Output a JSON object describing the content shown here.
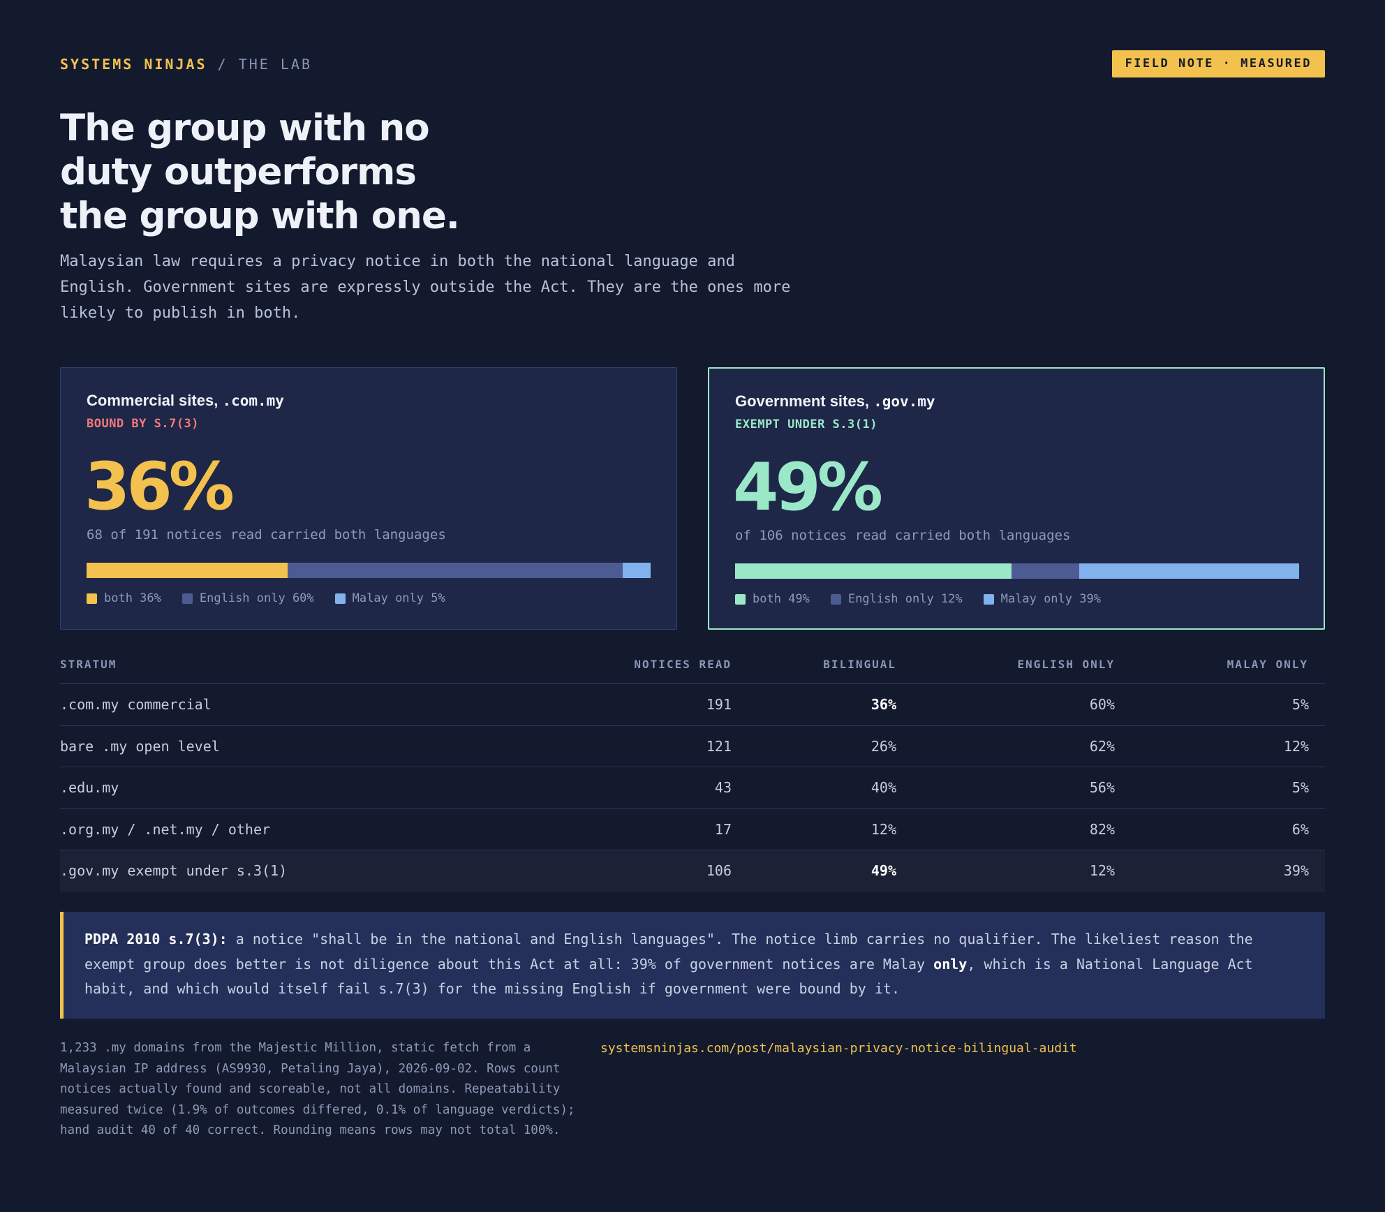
{
  "header": {
    "org": "SYSTEMS NINJAS",
    "separator": "/",
    "section": "THE LAB",
    "badge": "FIELD NOTE · MEASURED"
  },
  "headline": [
    "The group with no",
    "duty outperforms",
    "the group with one."
  ],
  "lede": "Malaysian law requires a privacy notice in both the national language and English. Government sites are expressly outside the Act. They are the ones more likely to publish in both.",
  "colors": {
    "both_commercial": "#f2c14e",
    "both_government": "#9be8c8",
    "english_only": "#4d5b93",
    "malay_only": "#82b2ee",
    "bound_tag": "#f27a7a",
    "exempt_tag": "#9be8c8"
  },
  "cards": [
    {
      "title": "Commercial sites,",
      "domain": ".com.my",
      "tag": "BOUND BY S.7(3)",
      "big": "36%",
      "sub": "68 of 191 notices read carried both languages",
      "legend": [
        "both 36%",
        "English only 60%",
        "Malay only 5%"
      ]
    },
    {
      "title": "Government sites,",
      "domain": ".gov.my",
      "tag": "EXEMPT UNDER S.3(1)",
      "big": "49%",
      "sub": "of 106 notices read carried both languages",
      "legend": [
        "both 49%",
        "English only 12%",
        "Malay only 39%"
      ]
    }
  ],
  "chart_data": [
    {
      "type": "bar",
      "title": "Commercial sites, .com.my",
      "categories": [
        "both",
        "English only",
        "Malay only"
      ],
      "values": [
        36,
        60,
        5
      ],
      "unit": "%"
    },
    {
      "type": "bar",
      "title": "Government sites, .gov.my",
      "categories": [
        "both",
        "English only",
        "Malay only"
      ],
      "values": [
        49,
        12,
        39
      ],
      "unit": "%"
    }
  ],
  "table": {
    "headers": [
      "STRATUM",
      "NOTICES READ",
      "BILINGUAL",
      "ENGLISH ONLY",
      "MALAY ONLY"
    ],
    "rows": [
      {
        "stratum": ".com.my commercial",
        "read": "191",
        "bilingual": "36%",
        "english": "60%",
        "malay": "5%"
      },
      {
        "stratum": "bare .my open level",
        "read": "121",
        "bilingual": "26%",
        "english": "62%",
        "malay": "12%"
      },
      {
        "stratum": ".edu.my",
        "read": "43",
        "bilingual": "40%",
        "english": "56%",
        "malay": "5%"
      },
      {
        "stratum": ".org.my / .net.my / other",
        "read": "17",
        "bilingual": "12%",
        "english": "82%",
        "malay": "6%"
      },
      {
        "stratum": ".gov.my exempt under s.3(1)",
        "read": "106",
        "bilingual": "49%",
        "english": "12%",
        "malay": "39%"
      }
    ]
  },
  "note": {
    "lead": "PDPA 2010 s.7(3):",
    "text1": " a notice \"shall be in the national and English languages\". The notice limb carries no qualifier. The likeliest reason the exempt group does better is not diligence about this Act at all: 39% of government notices are Malay ",
    "emph": "only",
    "text2": ", which is a National Language Act habit, and which would itself fail s.7(3) for the missing English if government were bound by it."
  },
  "footnote": "1,233 .my domains from the Majestic Million, static fetch from a Malaysian IP address (AS9930, Petaling Jaya), 2026-09-02. Rows count notices actually found and scoreable, not all domains. Repeatability measured twice (1.9% of outcomes differed, 0.1% of language verdicts); hand audit 40 of 40 correct. Rounding means rows may not total 100%.",
  "url": "systemsninjas.com/post/malaysian-privacy-notice-bilingual-audit"
}
